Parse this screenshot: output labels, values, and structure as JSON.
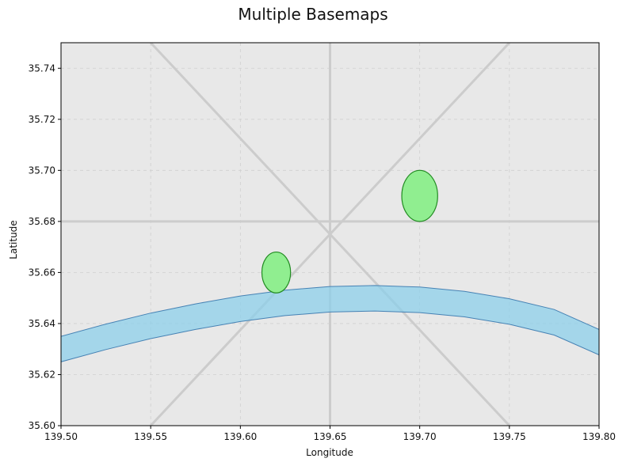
{
  "chart_data": {
    "type": "map",
    "title": "Multiple Basemaps",
    "xlabel": "Longitude",
    "ylabel": "Latitude",
    "xlim": [
      139.5,
      139.8
    ],
    "ylim": [
      35.6,
      35.75
    ],
    "x_ticks": [
      "139.50",
      "139.55",
      "139.60",
      "139.65",
      "139.70",
      "139.75",
      "139.80"
    ],
    "y_ticks": [
      "35.60",
      "35.62",
      "35.64",
      "35.66",
      "35.68",
      "35.70",
      "35.72",
      "35.74"
    ],
    "grid": true,
    "background_color": "#e8e8e8",
    "roads": [
      {
        "x": [
          139.5,
          139.8
        ],
        "y": [
          35.68,
          35.68
        ]
      },
      {
        "x": [
          139.65,
          139.65
        ],
        "y": [
          35.6,
          35.75
        ]
      },
      {
        "x": [
          139.55,
          139.75
        ],
        "y": [
          35.6,
          35.75
        ]
      },
      {
        "x": [
          139.55,
          139.75
        ],
        "y": [
          35.75,
          35.6
        ]
      }
    ],
    "road_color": "#cccccc",
    "river": {
      "color": "#87ceeb",
      "edge_color": "#4682b4",
      "x": [
        139.5,
        139.525,
        139.55,
        139.575,
        139.6,
        139.625,
        139.65,
        139.675,
        139.7,
        139.725,
        139.75,
        139.775,
        139.8
      ],
      "upper": [
        35.635,
        35.6398,
        35.6441,
        35.6477,
        35.6508,
        35.6531,
        35.6545,
        35.6549,
        35.6543,
        35.6526,
        35.6497,
        35.6455,
        35.6377
      ],
      "lower": [
        35.625,
        35.6298,
        35.6341,
        35.6377,
        35.6408,
        35.6431,
        35.6445,
        35.6449,
        35.6443,
        35.6426,
        35.6397,
        35.6355,
        35.6277
      ]
    },
    "parks": [
      {
        "center": [
          139.62,
          35.66
        ],
        "width": 0.016,
        "height": 0.016
      },
      {
        "center": [
          139.7,
          35.69
        ],
        "width": 0.02,
        "height": 0.02
      }
    ],
    "park_color": "#90ee90",
    "park_edge": "#228b22"
  }
}
